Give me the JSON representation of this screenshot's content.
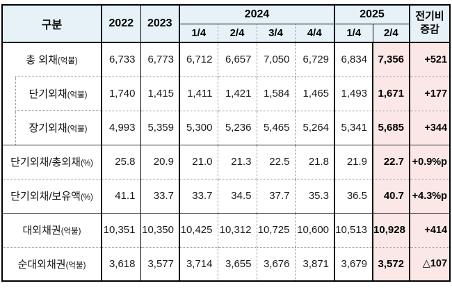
{
  "header": {
    "category": "구분",
    "y2022": "2022",
    "y2023": "2023",
    "g2024": "2024",
    "g2025": "2025",
    "q2024": [
      "1/4",
      "2/4",
      "3/4",
      "4/4"
    ],
    "q2025": [
      "1/4",
      "2/4"
    ],
    "change": [
      "전기비",
      "증감"
    ]
  },
  "rows": [
    {
      "label": "총 외채",
      "unit": "(억불)",
      "values": [
        "6,733",
        "6,773",
        "6,712",
        "6,657",
        "7,050",
        "6,729",
        "6,834",
        "7,356",
        "+521"
      ]
    },
    {
      "label": "단기외채",
      "unit": "(억불)",
      "values": [
        "1,740",
        "1,415",
        "1,411",
        "1,421",
        "1,584",
        "1,465",
        "1,493",
        "1,671",
        "+177"
      ]
    },
    {
      "label": "장기외채",
      "unit": "(억불)",
      "values": [
        "4,993",
        "5,359",
        "5,300",
        "5,236",
        "5,465",
        "5,264",
        "5,341",
        "5,685",
        "+344"
      ]
    },
    {
      "label": "단기외채/총외채",
      "unit": "(%)",
      "values": [
        "25.8",
        "20.9",
        "21.0",
        "21.3",
        "22.5",
        "21.8",
        "21.9",
        "22.7",
        "+0.9%p"
      ]
    },
    {
      "label": "단기외채/보유액",
      "unit": "(%)",
      "values": [
        "41.1",
        "33.7",
        "33.7",
        "34.5",
        "37.7",
        "35.3",
        "36.5",
        "40.7",
        "+4.3%p"
      ]
    },
    {
      "label": "대외채권",
      "unit": "(억불)",
      "values": [
        "10,351",
        "10,350",
        "10,425",
        "10,312",
        "10,725",
        "10,600",
        "10,513",
        "10,928",
        "+414"
      ]
    },
    {
      "label": "순대외채권",
      "unit": "(억불)",
      "values": [
        "3,618",
        "3,577",
        "3,714",
        "3,655",
        "3,676",
        "3,871",
        "3,679",
        "3,572",
        "△107"
      ]
    }
  ],
  "colors": {
    "header_bg": "#e6f2f8",
    "highlight_bg": "#fbe7e5"
  }
}
